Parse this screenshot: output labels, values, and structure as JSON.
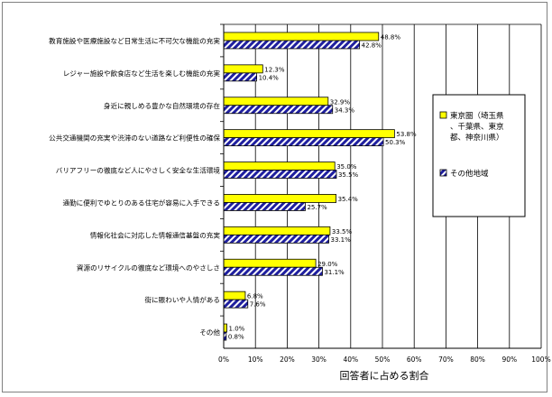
{
  "chart_data": {
    "type": "bar",
    "orientation": "horizontal",
    "categories": [
      "教育施設や医療施設など日常生活に不可欠な機能の充実",
      "レジャー施設や飲食店など生活を楽しむ機能の充実",
      "身近に親しめる豊かな自然環境の存在",
      "公共交通機関の充実や渋滞のない道路など利便性の確保",
      "バリアフリーの徹底など人にやさしく安全な生活環境",
      "通勤に便利でゆとりのある住宅が容易に入手できる",
      "情報化社会に対応した情報通信基盤の充実",
      "資源のリサイクルの徹底など環境へのやさしさ",
      "街に賑わいや人情がある",
      "その他"
    ],
    "series": [
      {
        "name": "東京圏（埼玉県、千葉県、東京都、神奈川県）",
        "values": [
          48.8,
          12.3,
          32.9,
          53.8,
          35.0,
          35.4,
          33.5,
          29.0,
          6.8,
          1.0
        ],
        "labels": [
          "48.8%",
          "12.3%",
          "32.9%",
          "53.8%",
          "35.0%",
          "35.4%",
          "33.5%",
          "29.0%",
          "6.8%",
          "1.0%"
        ],
        "color": "#ffff00",
        "pattern": "solid"
      },
      {
        "name": "その他地域",
        "values": [
          42.8,
          10.4,
          34.3,
          50.3,
          35.5,
          25.7,
          33.1,
          31.1,
          7.6,
          0.8
        ],
        "labels": [
          "42.8%",
          "10.4%",
          "34.3%",
          "50.3%",
          "35.5%",
          "25.7%",
          "33.1%",
          "31.1%",
          "7.6%",
          "0.8%"
        ],
        "color": "#1f1f9f",
        "pattern": "diagonal-stripes"
      }
    ],
    "xlim": [
      0,
      100
    ],
    "xticks": [
      "0%",
      "10%",
      "20%",
      "30%",
      "40%",
      "50%",
      "60%",
      "70%",
      "80%",
      "90%",
      "100%"
    ],
    "xlabel": "回答者に占める割合",
    "grid": "vertical",
    "legend": "right"
  }
}
